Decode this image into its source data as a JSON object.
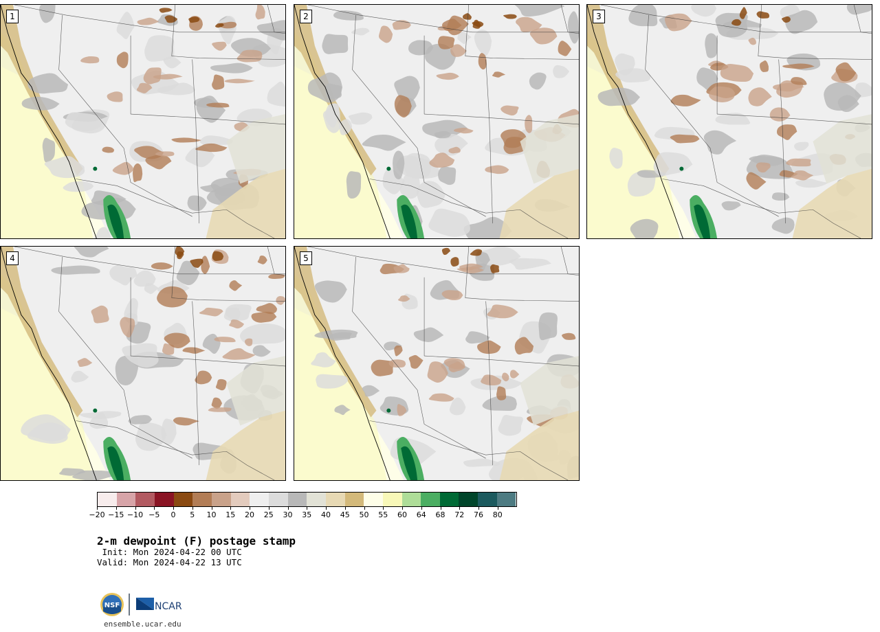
{
  "product": {
    "title": "2-m dewpoint (F) postage stamp",
    "init": " Init: Mon 2024-04-22 00 UTC",
    "valid": "Valid: Mon 2024-04-22 13 UTC",
    "site": "ensemble.ucar.edu"
  },
  "members": [
    {
      "label": "1"
    },
    {
      "label": "2"
    },
    {
      "label": "3"
    },
    {
      "label": "4"
    },
    {
      "label": "5"
    }
  ],
  "colorbar": {
    "ticks": [
      "−20",
      "−15",
      "−10",
      "−5",
      "0",
      "5",
      "10",
      "15",
      "20",
      "25",
      "30",
      "35",
      "40",
      "45",
      "50",
      "55",
      "60",
      "64",
      "68",
      "72",
      "76",
      "80"
    ],
    "colors": [
      "#f7ecec",
      "#d7a4a8",
      "#b25a61",
      "#8a1424",
      "#8a4a12",
      "#b27d56",
      "#c9a28a",
      "#e3cbbd",
      "#efefef",
      "#dcdcdc",
      "#b8b8b8",
      "#e2e2d6",
      "#e7d9b4",
      "#d3b97a",
      "#fefee8",
      "#f8f8b8",
      "#aedd98",
      "#4bae62",
      "#006a35",
      "#00452a",
      "#1c5a5e",
      "#4d7b82"
    ]
  },
  "logos": {
    "nsf_text": "NSF",
    "ncar_text": "NCAR"
  }
}
